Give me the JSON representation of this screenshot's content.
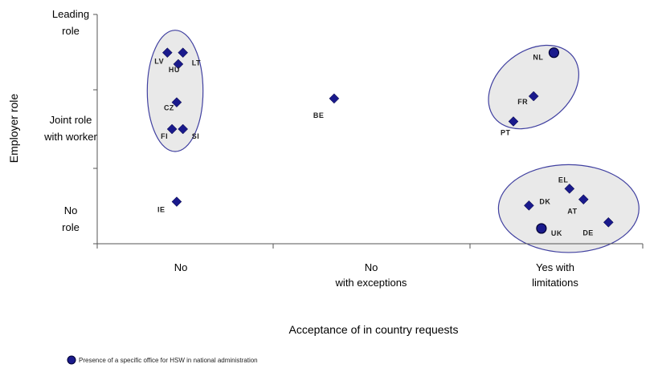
{
  "chart_data": {
    "type": "scatter",
    "xlabel": "Acceptance of in country requests",
    "ylabel": "Employer role",
    "x_categories": [
      "No",
      "No\nwith exceptions",
      "Yes with\nlimitations"
    ],
    "y_categories": [
      "No\nrole",
      "Joint role\nwith worker",
      "Leading\nrole"
    ],
    "legend": "Presence of a specific office for HSW in national administration",
    "points": [
      {
        "label": "LV",
        "x": 0.95,
        "y": 2.5,
        "marker": "diamond"
      },
      {
        "label": "LT",
        "x": 1.05,
        "y": 2.5,
        "marker": "diamond"
      },
      {
        "label": "HU",
        "x": 1.02,
        "y": 2.35,
        "marker": "diamond"
      },
      {
        "label": "CZ",
        "x": 1.01,
        "y": 1.85,
        "marker": "diamond"
      },
      {
        "label": "FI",
        "x": 0.98,
        "y": 1.5,
        "marker": "diamond"
      },
      {
        "label": "SI",
        "x": 1.05,
        "y": 1.5,
        "marker": "diamond"
      },
      {
        "label": "IE",
        "x": 1.01,
        "y": 0.55,
        "marker": "diamond"
      },
      {
        "label": "BE",
        "x": 2.02,
        "y": 1.9,
        "marker": "diamond"
      },
      {
        "label": "NL",
        "x": 3.43,
        "y": 2.5,
        "marker": "circle"
      },
      {
        "label": "FR",
        "x": 3.3,
        "y": 1.93,
        "marker": "diamond"
      },
      {
        "label": "PT",
        "x": 3.17,
        "y": 1.6,
        "marker": "diamond"
      },
      {
        "label": "EL",
        "x": 3.53,
        "y": 0.72,
        "marker": "diamond"
      },
      {
        "label": "AT",
        "x": 3.62,
        "y": 0.58,
        "marker": "diamond"
      },
      {
        "label": "DK",
        "x": 3.27,
        "y": 0.5,
        "marker": "diamond"
      },
      {
        "label": "UK",
        "x": 3.35,
        "y": 0.2,
        "marker": "circle"
      },
      {
        "label": "DE",
        "x": 3.78,
        "y": 0.28,
        "marker": "diamond"
      }
    ],
    "clusters": [
      {
        "members": [
          "LV",
          "LT",
          "HU",
          "CZ",
          "FI",
          "SI"
        ]
      },
      {
        "members": [
          "NL",
          "FR",
          "PT"
        ]
      },
      {
        "members": [
          "EL",
          "AT",
          "DK",
          "UK",
          "DE"
        ]
      }
    ],
    "xlim": [
      0.5,
      4.0
    ],
    "ylim": [
      0,
      3
    ],
    "grid": false,
    "legend_position": "bottom-left"
  },
  "colors": {
    "marker": "#1a1a8c",
    "marker_stroke": "#000033",
    "ellipse_fill": "#e9e9e9",
    "ellipse_stroke": "#4040a0",
    "axis": "#555555"
  }
}
